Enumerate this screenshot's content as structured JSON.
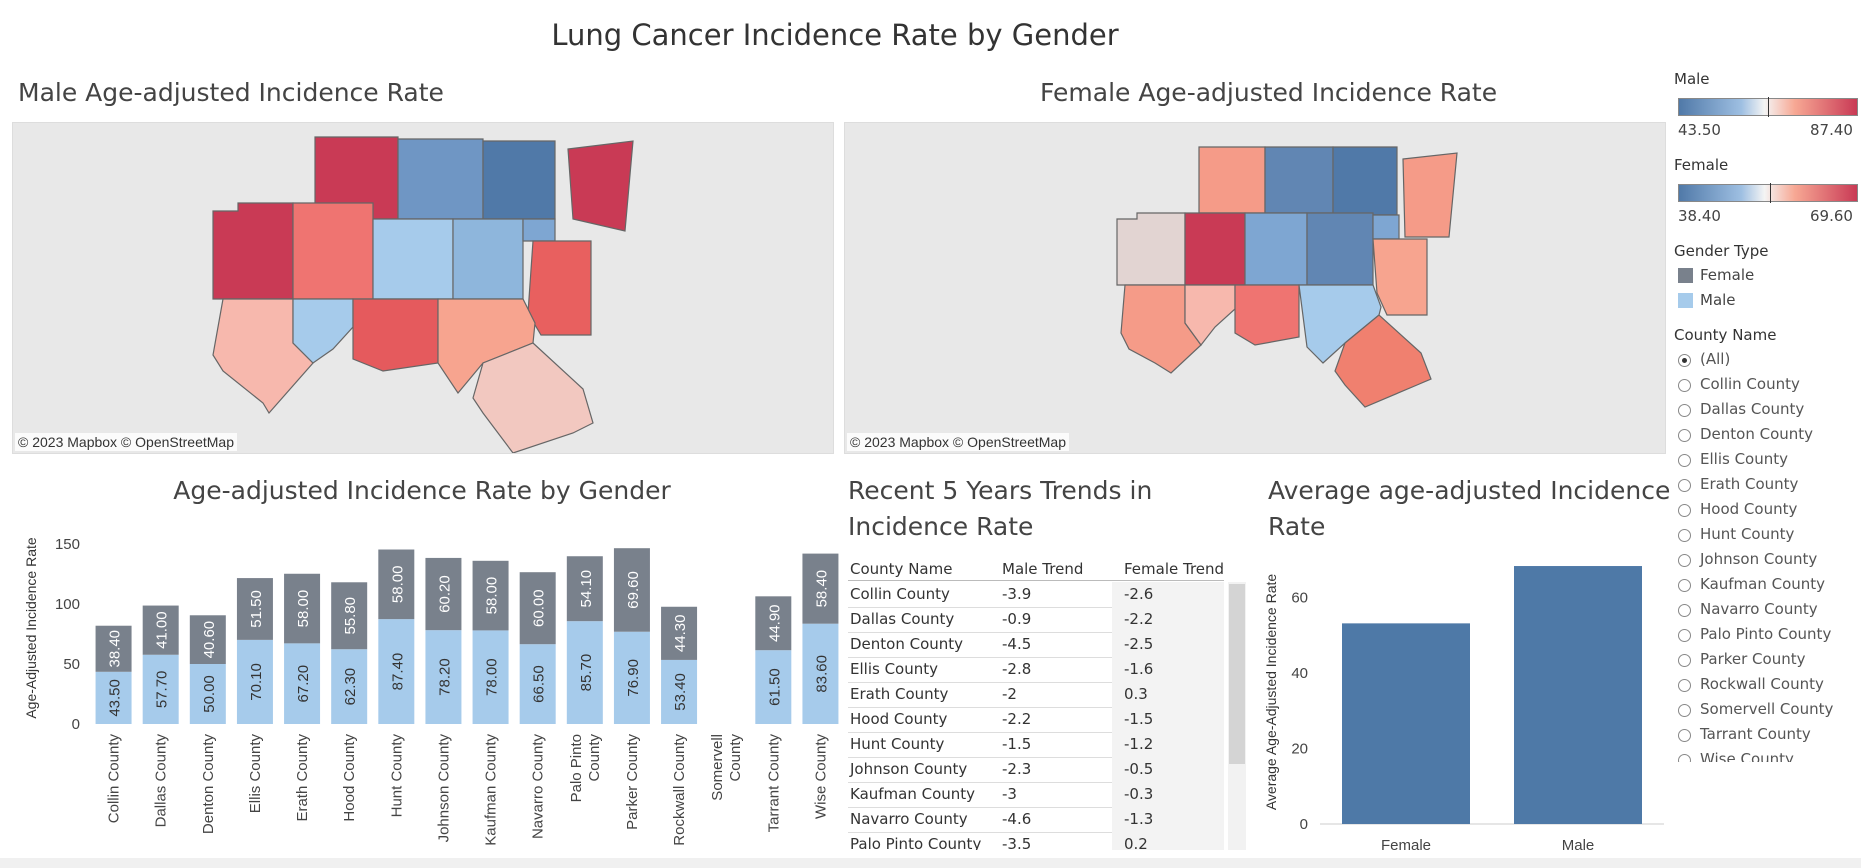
{
  "dashboard": {
    "title": "Lung Cancer Incidence Rate by Gender"
  },
  "male_map": {
    "title": "Male Age-adjusted Incidence Rate",
    "credit": "© 2023 Mapbox  © OpenStreetMap"
  },
  "female_map": {
    "title": "Female Age-adjusted Incidence Rate",
    "credit": "© 2023 Mapbox  © OpenStreetMap"
  },
  "colors": {
    "female_bar": "#79818c",
    "male_bar": "#a6cbeb",
    "avg_bar": "#4e79a7"
  },
  "legend": {
    "male": {
      "title": "Male",
      "min": "43.50",
      "max": "87.40"
    },
    "female": {
      "title": "Female",
      "min": "38.40",
      "max": "69.60"
    },
    "gender_type": {
      "title": "Gender Type",
      "items": [
        {
          "label": "Female",
          "color": "#79818c"
        },
        {
          "label": "Male",
          "color": "#a6cbeb"
        }
      ]
    },
    "county_filter": {
      "title": "County Name",
      "options": [
        "(All)",
        "Collin County",
        "Dallas County",
        "Denton County",
        "Ellis County",
        "Erath County",
        "Hood County",
        "Hunt County",
        "Johnson County",
        "Kaufman County",
        "Navarro County",
        "Palo Pinto County",
        "Parker County",
        "Rockwall County",
        "Somervell County",
        "Tarrant County",
        "Wise County"
      ],
      "selected": "(All)"
    }
  },
  "chart_data": [
    {
      "type": "bar",
      "title": "Age-adjusted Incidence Rate by Gender",
      "ylabel": "Age-Adjusted Incidence Rate",
      "ylim": [
        0,
        160
      ],
      "yticks": [
        0,
        50,
        100,
        150
      ],
      "categories": [
        "Collin County",
        "Dallas County",
        "Denton County",
        "Ellis County",
        "Erath County",
        "Hood County",
        "Hunt County",
        "Johnson County",
        "Kaufman County",
        "Navarro County",
        "Palo Pinto County",
        "Parker County",
        "Rockwall County",
        "Somervell County",
        "Tarrant County",
        "Wise County"
      ],
      "series": [
        {
          "name": "Male",
          "values": [
            43.5,
            57.7,
            50.0,
            70.1,
            67.2,
            62.3,
            87.4,
            78.2,
            78.0,
            66.5,
            85.7,
            76.9,
            53.4,
            null,
            61.5,
            83.6
          ]
        },
        {
          "name": "Female",
          "values": [
            38.4,
            41.0,
            40.6,
            51.5,
            58.0,
            55.8,
            58.0,
            60.2,
            58.0,
            60.0,
            54.1,
            69.6,
            44.3,
            null,
            44.9,
            58.4
          ]
        }
      ],
      "male_labels": [
        "43.50",
        "57.70",
        "50.00",
        "70.10",
        "67.20",
        "62.30",
        "87.40",
        "78.20",
        "78.00",
        "66.50",
        "85.70",
        "76.90",
        "53.40",
        "",
        "61.50",
        "83.60"
      ],
      "female_labels": [
        "38.40",
        "41.00",
        "40.60",
        "51.50",
        "58.00",
        "55.80",
        "58.00",
        "60.20",
        "58.00",
        "60.00",
        "54.10",
        "69.60",
        "44.30",
        "",
        "44.90",
        "58.40"
      ]
    },
    {
      "type": "bar",
      "title": "Average age-adjusted Incidence Rate",
      "ylabel": "Average Age-Adjusted Incidence Rate",
      "ylim": [
        0,
        70
      ],
      "yticks": [
        0,
        20,
        40,
        60
      ],
      "categories": [
        "Female",
        "Male"
      ],
      "values": [
        53.2,
        68.4
      ]
    }
  ],
  "trends_table": {
    "title_line1": "Recent 5 Years Trends in",
    "title_line2": "Incidence Rate",
    "headers": [
      "County Name",
      "Male Trend",
      "Female Trend"
    ],
    "rows": [
      [
        "Collin County",
        "-3.9",
        "-2.6"
      ],
      [
        "Dallas County",
        "-0.9",
        "-2.2"
      ],
      [
        "Denton County",
        "-4.5",
        "-2.5"
      ],
      [
        "Ellis County",
        "-2.8",
        "-1.6"
      ],
      [
        "Erath County",
        "-2",
        "0.3"
      ],
      [
        "Hood County",
        "-2.2",
        "-1.5"
      ],
      [
        "Hunt County",
        "-1.5",
        "-1.2"
      ],
      [
        "Johnson County",
        "-2.3",
        "-0.5"
      ],
      [
        "Kaufman County",
        "-3",
        "-0.3"
      ],
      [
        "Navarro County",
        "-4.6",
        "-1.3"
      ],
      [
        "Palo Pinto County",
        "-3.5",
        "0.2"
      ]
    ]
  }
}
